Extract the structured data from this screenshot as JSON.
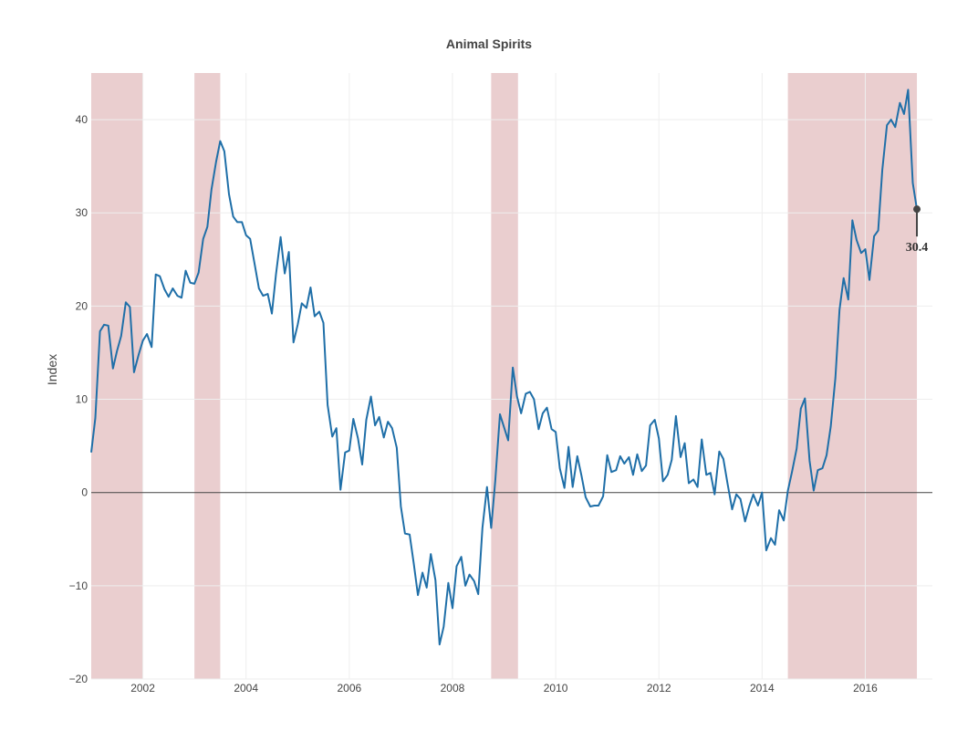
{
  "chart_data": {
    "type": "line",
    "title": "Animal Spirits",
    "xlabel": "",
    "ylabel": "Index",
    "xlim": [
      2001.0,
      2017.3
    ],
    "ylim": [
      -20,
      45
    ],
    "yticks": [
      -20,
      -10,
      0,
      10,
      20,
      30,
      40
    ],
    "xticks": [
      2002,
      2004,
      2006,
      2008,
      2010,
      2012,
      2014,
      2016
    ],
    "grid": true,
    "zero_line": true,
    "series_color": "#1f6fa8",
    "band_color": "#d9a5a8",
    "shaded_periods": [
      [
        2001.0,
        2002.0
      ],
      [
        2003.0,
        2003.5
      ],
      [
        2008.75,
        2009.27
      ],
      [
        2014.5,
        2017.0
      ]
    ],
    "annotation": {
      "x": 2017.0,
      "y": 30.4,
      "text": "30.4"
    },
    "series": [
      {
        "x": [
          2001.0,
          2001.08,
          2001.17,
          2001.25,
          2001.33,
          2001.42,
          2001.5,
          2001.58,
          2001.67,
          2001.75,
          2001.83,
          2001.92,
          2002.0,
          2002.08,
          2002.17,
          2002.25,
          2002.33,
          2002.42,
          2002.5,
          2002.58,
          2002.67,
          2002.75,
          2002.83,
          2002.92,
          2003.0,
          2003.08,
          2003.17,
          2003.25,
          2003.33,
          2003.42,
          2003.5,
          2003.58,
          2003.67,
          2003.75,
          2003.83,
          2003.92,
          2004.0,
          2004.08,
          2004.17,
          2004.25,
          2004.33,
          2004.42,
          2004.5,
          2004.58,
          2004.67,
          2004.75,
          2004.83,
          2004.92,
          2005.0,
          2005.08,
          2005.17,
          2005.25,
          2005.33,
          2005.42,
          2005.5,
          2005.58,
          2005.67,
          2005.75,
          2005.83,
          2005.92,
          2006.0,
          2006.08,
          2006.17,
          2006.25,
          2006.33,
          2006.42,
          2006.5,
          2006.58,
          2006.67,
          2006.75,
          2006.83,
          2006.92,
          2007.0,
          2007.08,
          2007.17,
          2007.25,
          2007.33,
          2007.42,
          2007.5,
          2007.58,
          2007.67,
          2007.75,
          2007.83,
          2007.92,
          2008.0,
          2008.08,
          2008.17,
          2008.25,
          2008.33,
          2008.42,
          2008.5,
          2008.58,
          2008.67,
          2008.75,
          2008.83,
          2008.92,
          2009.0,
          2009.08,
          2009.17,
          2009.25,
          2009.33,
          2009.42,
          2009.5,
          2009.58,
          2009.67,
          2009.75,
          2009.83,
          2009.92,
          2010.0,
          2010.08,
          2010.17,
          2010.25,
          2010.33,
          2010.42,
          2010.5,
          2010.58,
          2010.67,
          2010.75,
          2010.83,
          2010.92,
          2011.0,
          2011.08,
          2011.17,
          2011.25,
          2011.33,
          2011.42,
          2011.5,
          2011.58,
          2011.67,
          2011.75,
          2011.83,
          2011.92,
          2012.0,
          2012.08,
          2012.17,
          2012.25,
          2012.33,
          2012.42,
          2012.5,
          2012.58,
          2012.67,
          2012.75,
          2012.83,
          2012.92,
          2013.0,
          2013.08,
          2013.17,
          2013.25,
          2013.33,
          2013.42,
          2013.5,
          2013.58,
          2013.67,
          2013.75,
          2013.83,
          2013.92,
          2014.0,
          2014.08,
          2014.17,
          2014.25,
          2014.33,
          2014.42,
          2014.5,
          2014.58,
          2014.67,
          2014.75,
          2014.83,
          2014.92,
          2015.0,
          2015.08,
          2015.17,
          2015.25,
          2015.33,
          2015.42,
          2015.5,
          2015.58,
          2015.67,
          2015.75,
          2015.83,
          2015.92,
          2016.0,
          2016.08,
          2016.17,
          2016.25,
          2016.33,
          2016.42,
          2016.5,
          2016.58,
          2016.67,
          2016.75,
          2016.83,
          2016.92,
          2017.0
        ],
        "values": [
          4.3,
          8.0,
          17.3,
          18.0,
          17.9,
          13.3,
          15.2,
          16.8,
          20.4,
          19.9,
          12.9,
          14.8,
          16.3,
          17.0,
          15.6,
          23.4,
          23.2,
          21.8,
          21.0,
          21.9,
          21.1,
          20.9,
          23.8,
          22.5,
          22.4,
          23.6,
          27.2,
          28.5,
          32.5,
          35.5,
          37.7,
          36.6,
          32.0,
          29.6,
          29.0,
          29.0,
          27.6,
          27.2,
          24.4,
          21.9,
          21.1,
          21.3,
          19.2,
          23.4,
          27.4,
          23.5,
          25.8,
          16.1,
          18.0,
          20.3,
          19.8,
          22.0,
          18.9,
          19.4,
          18.2,
          9.4,
          6.0,
          6.9,
          0.3,
          4.3,
          4.5,
          7.9,
          5.8,
          3.0,
          7.8,
          10.3,
          7.2,
          8.1,
          5.9,
          7.6,
          6.9,
          4.8,
          -1.5,
          -4.4,
          -4.5,
          -7.6,
          -11.0,
          -8.6,
          -10.2,
          -6.6,
          -9.4,
          -16.3,
          -14.4,
          -9.7,
          -12.4,
          -7.9,
          -6.9,
          -10.0,
          -8.8,
          -9.5,
          -10.9,
          -3.8,
          0.6,
          -3.8,
          1.3,
          8.4,
          7.0,
          5.6,
          13.4,
          10.3,
          8.5,
          10.6,
          10.8,
          10.0,
          6.8,
          8.5,
          9.1,
          6.8,
          6.5,
          2.6,
          0.5,
          4.9,
          0.6,
          3.9,
          1.8,
          -0.5,
          -1.5,
          -1.4,
          -1.4,
          -0.4,
          4.0,
          2.2,
          2.4,
          3.9,
          3.1,
          3.8,
          1.9,
          4.1,
          2.3,
          2.9,
          7.2,
          7.8,
          5.8,
          1.2,
          1.9,
          3.5,
          8.2,
          3.8,
          5.3,
          1.0,
          1.4,
          0.6,
          5.7,
          1.9,
          2.1,
          -0.2,
          4.4,
          3.6,
          1.0,
          -1.8,
          -0.2,
          -0.7,
          -3.1,
          -1.5,
          -0.2,
          -1.4,
          0.0,
          -6.2,
          -4.9,
          -5.6,
          -1.9,
          -3.0,
          0.2,
          2.2,
          4.7,
          9.0,
          10.1,
          3.4,
          0.2,
          2.4,
          2.6,
          4.0,
          7.1,
          12.3,
          19.6,
          23.0,
          20.7,
          29.2,
          27.1,
          25.7,
          26.1,
          22.8,
          27.5,
          28.1,
          34.6,
          39.4,
          40.0,
          39.2,
          41.8,
          40.6,
          43.2,
          33.2,
          30.4
        ]
      }
    ]
  }
}
